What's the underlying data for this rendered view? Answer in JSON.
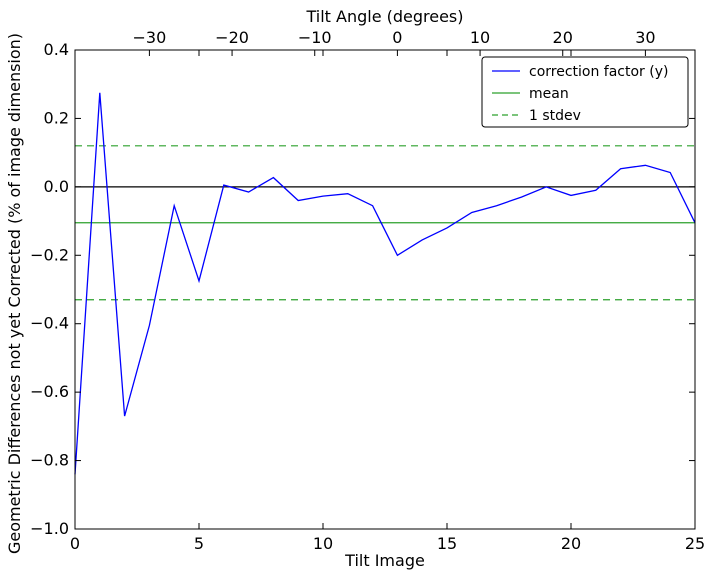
{
  "chart_data": {
    "type": "line",
    "xlabel": "Tilt Image",
    "ylabel": "Geometric Differences not yet Corrected (% of image dimension)",
    "top_xlabel": "Tilt Angle (degrees)",
    "xlim": [
      0,
      25
    ],
    "ylim": [
      -1.0,
      0.4
    ],
    "xticks": [
      0,
      5,
      10,
      15,
      20,
      25
    ],
    "xtick_labels": [
      "0",
      "5",
      "10",
      "15",
      "20",
      "25"
    ],
    "yticks": [
      -1.0,
      -0.8,
      -0.6,
      -0.4,
      -0.2,
      0.0,
      0.2,
      0.4
    ],
    "ytick_labels": [
      "−1.0",
      "−0.8",
      "−0.6",
      "−0.4",
      "−0.2",
      "0.0",
      "0.2",
      "0.4"
    ],
    "top_xlim": [
      -39,
      36
    ],
    "top_xticks": [
      -30,
      -20,
      -10,
      0,
      10,
      20,
      30
    ],
    "top_xtick_labels": [
      "−30",
      "−20",
      "−10",
      "0",
      "10",
      "20",
      "30"
    ],
    "grid": false,
    "legend_position": "top-right",
    "series": [
      {
        "name": "correction factor (y)",
        "color": "#0000ff",
        "style": "solid",
        "x": [
          0,
          1,
          2,
          3,
          4,
          5,
          6,
          7,
          8,
          9,
          10,
          11,
          12,
          13,
          14,
          15,
          16,
          17,
          18,
          19,
          20,
          21,
          22,
          23,
          24,
          25
        ],
        "values": [
          -0.84,
          0.275,
          -0.67,
          -0.405,
          -0.055,
          -0.275,
          0.005,
          -0.015,
          0.027,
          -0.04,
          -0.027,
          -0.02,
          -0.055,
          -0.2,
          -0.155,
          -0.12,
          -0.075,
          -0.055,
          -0.03,
          0.0,
          -0.025,
          -0.01,
          0.053,
          0.063,
          0.042,
          -0.105
        ]
      },
      {
        "name": "mean",
        "color": "#2ca02c",
        "style": "solid",
        "value": -0.105
      },
      {
        "name": "1 stdev",
        "color": "#2ca02c",
        "style": "dashed",
        "values": [
          0.12,
          -0.33
        ]
      }
    ],
    "zero_line": {
      "value": 0.0,
      "color": "#000000"
    }
  }
}
